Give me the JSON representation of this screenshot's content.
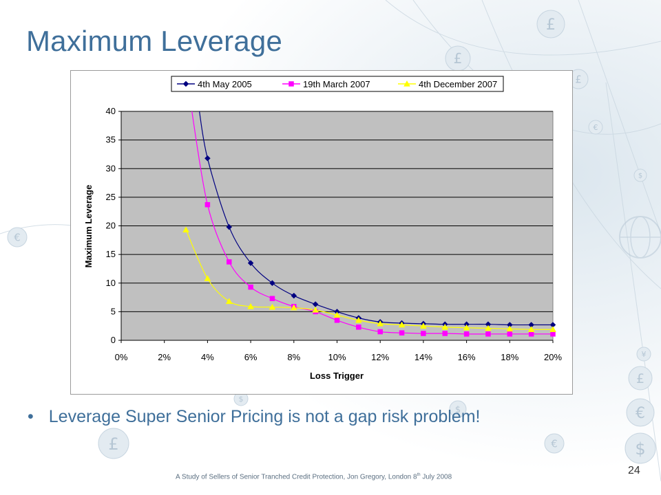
{
  "slide": {
    "title": "Maximum Leverage",
    "bullet": "Leverage Super Senior Pricing is not a gap risk problem!",
    "footer_text": "A Study of Sellers of Senior Tranched Credit Protection, Jon Gregory, London 8",
    "footer_sup": "th",
    "footer_end": " July 2008",
    "page_number": "24",
    "decor_symbols": [
      "£",
      "£",
      "£",
      "€",
      "$",
      "¥",
      "£",
      "€",
      "$",
      "€",
      "$",
      "$",
      "£",
      "€"
    ]
  },
  "chart_data": {
    "type": "line",
    "xlabel": "Loss Trigger",
    "ylabel": "Maximum Leverage",
    "xlim": [
      0,
      0.2
    ],
    "ylim": [
      0,
      40
    ],
    "x_ticks": [
      0,
      0.02,
      0.04,
      0.06,
      0.08,
      0.1,
      0.12,
      0.14,
      0.16,
      0.18,
      0.2
    ],
    "x_tick_labels": [
      "0%",
      "2%",
      "4%",
      "6%",
      "8%",
      "10%",
      "12%",
      "14%",
      "16%",
      "18%",
      "20%"
    ],
    "y_ticks": [
      0,
      5,
      10,
      15,
      20,
      25,
      30,
      35,
      40
    ],
    "y_tick_labels": [
      "0",
      "5",
      "10",
      "15",
      "20",
      "25",
      "30",
      "35",
      "40"
    ],
    "grid": "horizontal",
    "legend_position": "top",
    "plot_background": "#c0c0c0",
    "series": [
      {
        "name": "4th May 2005",
        "color": "#000080",
        "marker": "diamond",
        "x": [
          0.04,
          0.05,
          0.06,
          0.07,
          0.08,
          0.09,
          0.1,
          0.11,
          0.12,
          0.13,
          0.14,
          0.15,
          0.16,
          0.17,
          0.18,
          0.19,
          0.2
        ],
        "y": [
          31.8,
          19.8,
          13.5,
          10.0,
          7.8,
          6.3,
          5.0,
          3.9,
          3.2,
          3.0,
          2.9,
          2.8,
          2.8,
          2.8,
          2.7,
          2.7,
          2.7
        ],
        "curve_start": {
          "x": 0.036,
          "y": 40
        }
      },
      {
        "name": "19th March 2007",
        "color": "#ff00ff",
        "marker": "square",
        "x": [
          0.04,
          0.05,
          0.06,
          0.07,
          0.08,
          0.09,
          0.1,
          0.11,
          0.12,
          0.13,
          0.14,
          0.15,
          0.16,
          0.17,
          0.18,
          0.19,
          0.2
        ],
        "y": [
          23.7,
          13.7,
          9.3,
          7.3,
          5.9,
          5.0,
          3.5,
          2.3,
          1.5,
          1.3,
          1.2,
          1.2,
          1.1,
          1.1,
          1.1,
          1.1,
          1.1
        ],
        "curve_start": {
          "x": 0.0325,
          "y": 40
        }
      },
      {
        "name": "4th December 2007",
        "color": "#ffff00",
        "marker": "triangle",
        "x": [
          0.03,
          0.04,
          0.05,
          0.06,
          0.07,
          0.08,
          0.09,
          0.1,
          0.11,
          0.12,
          0.13,
          0.14,
          0.15,
          0.16,
          0.17,
          0.18,
          0.19,
          0.2
        ],
        "y": [
          19.3,
          10.8,
          6.8,
          5.9,
          5.8,
          5.7,
          5.3,
          4.4,
          3.5,
          2.9,
          2.7,
          2.5,
          2.3,
          2.2,
          2.1,
          2.0,
          1.9,
          1.9
        ]
      }
    ]
  }
}
